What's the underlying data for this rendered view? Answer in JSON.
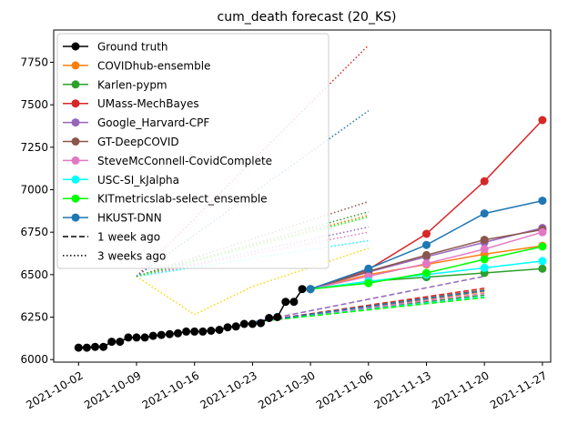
{
  "chart_data": {
    "type": "line",
    "title": "cum_death forecast (20_KS)",
    "xlabel": "",
    "ylabel": "",
    "grid": false,
    "legend_position": "top-left",
    "xlim": [
      "2021-09-29",
      "2021-11-28"
    ],
    "ylim": [
      5985,
      7940
    ],
    "x_ticks": [
      "2021-10-02",
      "2021-10-09",
      "2021-10-16",
      "2021-10-23",
      "2021-10-30",
      "2021-11-06",
      "2021-11-13",
      "2021-11-20",
      "2021-11-27"
    ],
    "y_ticks": [
      6000,
      6250,
      6500,
      6750,
      7000,
      7250,
      7500,
      7750
    ],
    "ground_truth": {
      "name": "Ground truth",
      "color": "#000000",
      "x": [
        "2021-10-02",
        "2021-10-03",
        "2021-10-04",
        "2021-10-05",
        "2021-10-06",
        "2021-10-07",
        "2021-10-08",
        "2021-10-09",
        "2021-10-10",
        "2021-10-11",
        "2021-10-12",
        "2021-10-13",
        "2021-10-14",
        "2021-10-15",
        "2021-10-16",
        "2021-10-17",
        "2021-10-18",
        "2021-10-19",
        "2021-10-20",
        "2021-10-21",
        "2021-10-22",
        "2021-10-23",
        "2021-10-24",
        "2021-10-25",
        "2021-10-26",
        "2021-10-27",
        "2021-10-28",
        "2021-10-29",
        "2021-10-30"
      ],
      "y": [
        6070,
        6070,
        6075,
        6075,
        6105,
        6105,
        6130,
        6130,
        6130,
        6140,
        6145,
        6150,
        6155,
        6165,
        6165,
        6165,
        6170,
        6175,
        6190,
        6195,
        6210,
        6210,
        6215,
        6245,
        6250,
        6340,
        6340,
        6415,
        6415
      ]
    },
    "series": [
      {
        "name": "COVIDhub-ensemble",
        "color": "#ff7f0e",
        "solid": {
          "x": [
            "2021-10-30",
            "2021-11-06",
            "2021-11-13",
            "2021-11-20",
            "2021-11-27"
          ],
          "y": [
            6415,
            6500,
            6560,
            6620,
            6670
          ]
        },
        "one_week_ago": {
          "x": [
            "2021-10-23",
            "2021-11-20"
          ],
          "y": [
            6220,
            6400
          ]
        },
        "three_weeks_ago": {
          "x": [
            "2021-10-09",
            "2021-11-06"
          ],
          "y": [
            6490,
            6850
          ]
        }
      },
      {
        "name": "Karlen-pypm",
        "color": "#2ca02c",
        "solid": {
          "x": [
            "2021-10-30",
            "2021-11-06",
            "2021-11-13",
            "2021-11-20",
            "2021-11-27"
          ],
          "y": [
            6415,
            6460,
            6485,
            6510,
            6535
          ]
        },
        "one_week_ago": {
          "x": [
            "2021-10-23",
            "2021-11-20"
          ],
          "y": [
            6220,
            6380
          ]
        },
        "three_weeks_ago": {
          "x": [
            "2021-10-09",
            "2021-11-06"
          ],
          "y": [
            6490,
            6870
          ]
        }
      },
      {
        "name": "UMass-MechBayes",
        "color": "#d62728",
        "solid": {
          "x": [
            "2021-10-30",
            "2021-11-06",
            "2021-11-13",
            "2021-11-20",
            "2021-11-27"
          ],
          "y": [
            6415,
            6530,
            6740,
            7050,
            7410
          ]
        },
        "one_week_ago": {
          "x": [
            "2021-10-23",
            "2021-11-20"
          ],
          "y": [
            6220,
            6420
          ]
        },
        "three_weeks_ago": {
          "x": [
            "2021-10-09",
            "2021-11-06"
          ],
          "y": [
            6490,
            7850
          ]
        }
      },
      {
        "name": "Google_Harvard-CPF",
        "color": "#9467bd",
        "solid": {
          "x": [
            "2021-10-30",
            "2021-11-06",
            "2021-11-13",
            "2021-11-20",
            "2021-11-27"
          ],
          "y": [
            6415,
            6515,
            6605,
            6690,
            6775
          ]
        },
        "one_week_ago": {
          "x": [
            "2021-10-23",
            "2021-11-20"
          ],
          "y": [
            6220,
            6490
          ]
        },
        "three_weeks_ago": {
          "x": [
            "2021-10-09",
            "2021-11-06"
          ],
          "y": [
            6490,
            6780
          ]
        }
      },
      {
        "name": "GT-DeepCOVID",
        "color": "#8c564b",
        "solid": {
          "x": [
            "2021-10-30",
            "2021-11-06",
            "2021-11-13",
            "2021-11-20",
            "2021-11-27"
          ],
          "y": [
            6415,
            6520,
            6615,
            6705,
            6765
          ]
        },
        "one_week_ago": {
          "x": [
            "2021-10-23",
            "2021-11-20"
          ],
          "y": [
            6220,
            6410
          ]
        },
        "three_weeks_ago": {
          "x": [
            "2021-10-09",
            "2021-11-06"
          ],
          "y": [
            6490,
            6930
          ]
        }
      },
      {
        "name": "SteveMcConnell-CovidComplete",
        "color": "#e377c2",
        "solid": {
          "x": [
            "2021-10-30",
            "2021-11-06",
            "2021-11-13",
            "2021-11-20",
            "2021-11-27"
          ],
          "y": [
            6415,
            6490,
            6565,
            6650,
            6750
          ]
        },
        "one_week_ago": {
          "x": [
            "2021-10-23",
            "2021-11-20"
          ],
          "y": [
            6220,
            6390
          ]
        },
        "three_weeks_ago": {
          "x": [
            "2021-10-09",
            "2021-11-06"
          ],
          "y": [
            6490,
            6750
          ]
        }
      },
      {
        "name": "USC-SI_kJalpha",
        "color": "#00ffff",
        "solid": {
          "x": [
            "2021-10-30",
            "2021-11-06",
            "2021-11-13",
            "2021-11-20",
            "2021-11-27"
          ],
          "y": [
            6415,
            6460,
            6500,
            6540,
            6580
          ]
        },
        "one_week_ago": {
          "x": [
            "2021-10-23",
            "2021-11-20"
          ],
          "y": [
            6220,
            6370
          ]
        },
        "three_weeks_ago": {
          "x": [
            "2021-10-09",
            "2021-11-06"
          ],
          "y": [
            6490,
            6700
          ]
        }
      },
      {
        "name": "KITmetricslab-select_ensemble",
        "color": "#00ff00",
        "solid": {
          "x": [
            "2021-10-30",
            "2021-11-06",
            "2021-11-13",
            "2021-11-20",
            "2021-11-27"
          ],
          "y": [
            6415,
            6450,
            6510,
            6590,
            6665
          ]
        },
        "one_week_ago": {
          "x": [
            "2021-10-23",
            "2021-11-20"
          ],
          "y": [
            6220,
            6365
          ]
        },
        "three_weeks_ago": {
          "x": [
            "2021-10-09",
            "2021-11-06"
          ],
          "y": [
            6490,
            6840
          ]
        }
      },
      {
        "name": "HKUST-DNN",
        "color": "#1f77b4",
        "solid": {
          "x": [
            "2021-10-30",
            "2021-11-06",
            "2021-11-13",
            "2021-11-20",
            "2021-11-27"
          ],
          "y": [
            6415,
            6535,
            6675,
            6860,
            6935
          ]
        },
        "one_week_ago": {
          "x": [
            "2021-10-23",
            "2021-11-20"
          ],
          "y": [
            6220,
            6405
          ]
        },
        "three_weeks_ago": {
          "x": [
            "2021-10-09",
            "2021-11-06"
          ],
          "y": [
            6490,
            7465
          ]
        }
      }
    ],
    "extra_three_weeks_ago": {
      "color": "#ffd700",
      "x": [
        "2021-10-09",
        "2021-10-16",
        "2021-10-23",
        "2021-11-06"
      ],
      "y": [
        6490,
        6265,
        6430,
        6655
      ]
    },
    "legend": {
      "entries": [
        "Ground truth",
        "COVIDhub-ensemble",
        "Karlen-pypm",
        "UMass-MechBayes",
        "Google_Harvard-CPF",
        "GT-DeepCOVID",
        "SteveMcConnell-CovidComplete",
        "USC-SI_kJalpha",
        "KITmetricslab-select_ensemble",
        "HKUST-DNN"
      ],
      "style_entries": [
        "1 week ago",
        "3 weeks ago"
      ]
    }
  }
}
